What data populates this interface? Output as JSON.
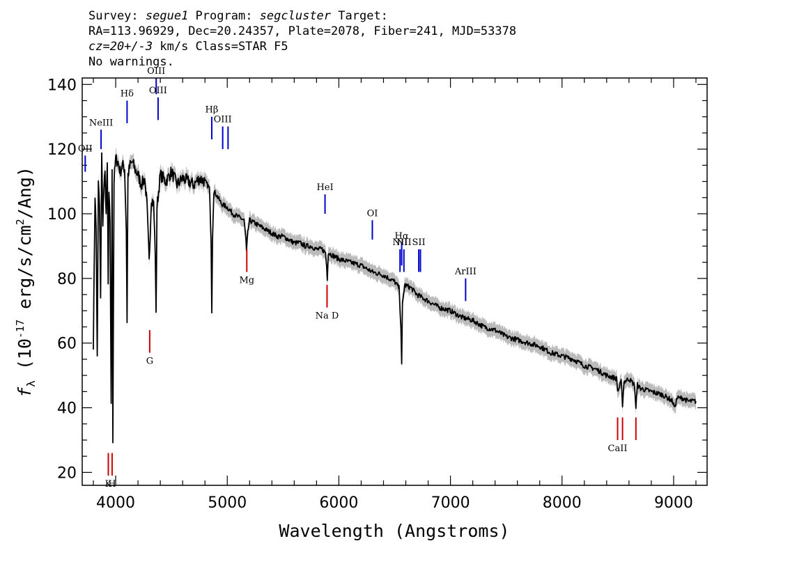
{
  "header": {
    "survey_label": "Survey: ",
    "survey": "segue1",
    "program_label": " Program: ",
    "program": "segcluster",
    "target_label": " Target:",
    "line2": "RA=113.96929, Dec=20.24357, Plate=2078, Fiber=241, MJD=53378",
    "cz": "cz=20+/-3",
    "cz_rest": " km/s Class=STAR F5",
    "line4": "No warnings."
  },
  "chart_data": {
    "type": "line",
    "xlabel": "Wavelength (Angstroms)",
    "ylabel_main": "f",
    "ylabel_sub": "λ",
    "ylabel_rest1": " (10",
    "ylabel_exp": "-17",
    "ylabel_rest2": " erg/s/cm",
    "ylabel_exp2": "2",
    "ylabel_rest3": "/Ang)",
    "xlim": [
      3700,
      9300
    ],
    "ylim": [
      16,
      142
    ],
    "x_ticks": [
      4000,
      5000,
      6000,
      7000,
      8000,
      9000
    ],
    "x_tick_labels": [
      "4000",
      "5000",
      "6000",
      "7000",
      "8000",
      "9000"
    ],
    "y_ticks": [
      20,
      40,
      60,
      80,
      100,
      120,
      140
    ],
    "y_tick_labels": [
      "20",
      "40",
      "60",
      "80",
      "100",
      "120",
      "140"
    ],
    "series": [
      {
        "color": "#000000",
        "error_color": "#bbbbbb",
        "x": [
          3800,
          3815,
          3825,
          3835,
          3845,
          3855,
          3865,
          3875,
          3885,
          3895,
          3905,
          3915,
          3925,
          3933,
          3940,
          3950,
          3960,
          3968,
          3975,
          3985,
          4000,
          4020,
          4040,
          4060,
          4080,
          4095,
          4102,
          4110,
          4130,
          4150,
          4170,
          4200,
          4230,
          4260,
          4280,
          4300,
          4320,
          4340,
          4355,
          4362,
          4370,
          4400,
          4450,
          4500,
          4550,
          4600,
          4650,
          4700,
          4750,
          4800,
          4840,
          4855,
          4861,
          4868,
          4880,
          4900,
          4950,
          5000,
          5050,
          5100,
          5150,
          5167,
          5172,
          5183,
          5200,
          5250,
          5300,
          5350,
          5400,
          5450,
          5500,
          5550,
          5600,
          5650,
          5700,
          5750,
          5800,
          5850,
          5880,
          5890,
          5896,
          5905,
          5950,
          6000,
          6100,
          6200,
          6300,
          6400,
          6500,
          6540,
          6556,
          6563,
          6570,
          6590,
          6650,
          6700,
          6800,
          6900,
          7000,
          7100,
          7200,
          7300,
          7400,
          7500,
          7600,
          7700,
          7800,
          7900,
          8000,
          8100,
          8200,
          8300,
          8400,
          8490,
          8498,
          8510,
          8530,
          8542,
          8555,
          8600,
          8650,
          8662,
          8675,
          8700,
          8800,
          8900,
          8950,
          8990,
          9010,
          9030,
          9080,
          9130,
          9200
        ],
        "y": [
          60,
          106,
          95,
          55,
          110,
          102,
          75,
          118,
          98,
          108,
          112,
          100,
          115,
          78,
          105,
          98,
          40,
          115,
          30,
          110,
          117,
          116,
          113,
          115,
          114,
          95,
          67,
          112,
          115,
          116,
          114,
          112,
          109,
          111,
          103,
          85,
          105,
          103,
          88,
          68,
          102,
          112,
          110,
          113,
          109,
          111,
          110,
          109,
          111,
          110,
          108,
          92,
          70,
          93,
          107,
          106,
          103,
          102,
          100,
          99,
          98,
          92,
          88,
          94,
          98,
          97,
          96,
          95,
          94,
          93,
          93,
          92,
          91,
          91,
          90,
          90,
          89,
          89,
          88,
          84,
          80,
          88,
          87,
          86,
          85,
          84,
          82,
          81,
          79,
          77,
          65,
          53,
          72,
          78,
          77,
          75,
          73,
          71,
          70,
          68,
          67,
          65,
          64,
          62,
          61,
          60,
          59,
          57,
          56,
          55,
          53,
          52,
          50,
          49,
          45,
          46,
          48,
          41,
          48,
          49,
          47,
          40,
          47,
          46,
          45,
          44,
          43,
          42,
          40,
          43,
          43,
          42,
          42
        ]
      }
    ],
    "lines_blue": [
      {
        "label": "OII",
        "x": 3727,
        "y1": 118,
        "y2": 113
      },
      {
        "label": "NeIII",
        "x": 3869,
        "y1": 126,
        "y2": 120
      },
      {
        "label": "Hδ",
        "x": 4102,
        "y1": 135,
        "y2": 128
      },
      {
        "label": "OIII",
        "x": 4363,
        "y1": 142,
        "y2": 137
      },
      {
        "label": "OIII",
        "x": 4380,
        "y1": 136,
        "y2": 129
      },
      {
        "label": "Hβ",
        "x": 4861,
        "y1": 130,
        "y2": 123
      },
      {
        "label": "OIII",
        "x": 4959,
        "y1": 127,
        "y2": 120
      },
      {
        "label": "",
        "x": 5007,
        "y1": 127,
        "y2": 120
      },
      {
        "label": "HeI",
        "x": 5876,
        "y1": 106,
        "y2": 100
      },
      {
        "label": "OI",
        "x": 6300,
        "y1": 98,
        "y2": 92
      },
      {
        "label": "NII",
        "x": 6548,
        "y1": 89,
        "y2": 82
      },
      {
        "label": "Hα",
        "x": 6563,
        "y1": 91,
        "y2": 84
      },
      {
        "label": "NII",
        "x": 6583,
        "y1": 89,
        "y2": 82
      },
      {
        "label": "SII",
        "x": 6716,
        "y1": 89,
        "y2": 82
      },
      {
        "label": "",
        "x": 6731,
        "y1": 89,
        "y2": 82
      },
      {
        "label": "ArIII",
        "x": 7136,
        "y1": 80,
        "y2": 73
      }
    ],
    "lines_red": [
      {
        "label": "K",
        "x": 3934,
        "y1": 26,
        "y2": 19
      },
      {
        "label": "H",
        "x": 3968,
        "y1": 26,
        "y2": 19
      },
      {
        "label": "G",
        "x": 4305,
        "y1": 64,
        "y2": 57
      },
      {
        "label": "Mg",
        "x": 5175,
        "y1": 89,
        "y2": 82
      },
      {
        "label": "Na D",
        "x": 5894,
        "y1": 78,
        "y2": 71
      },
      {
        "label": "CaII",
        "x": 8498,
        "y1": 37,
        "y2": 30
      },
      {
        "label": "",
        "x": 8542,
        "y1": 37,
        "y2": 30
      },
      {
        "label": "",
        "x": 8662,
        "y1": 37,
        "y2": 30
      }
    ]
  },
  "colors": {
    "blue_line": "#0000cc",
    "red_line": "#cc0000",
    "error_band": "#bbbbbb"
  }
}
